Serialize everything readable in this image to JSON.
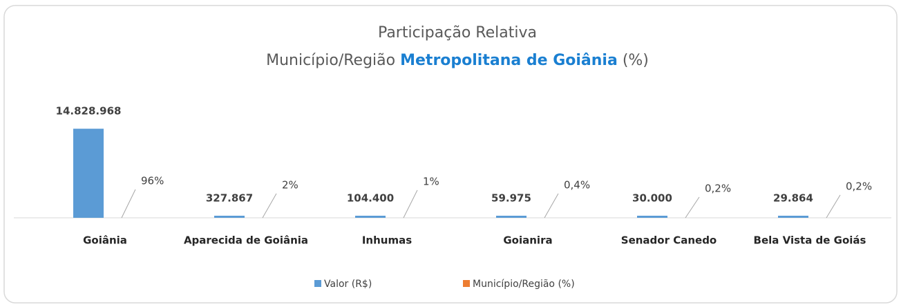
{
  "chart_data": {
    "type": "bar",
    "title": "Participação Relativa",
    "subtitle_parts": [
      "Município/Região",
      "Metropolitana de Goiânia",
      "(%)"
    ],
    "categories": [
      "Goiânia",
      "Aparecida de Goiânia",
      "Inhumas",
      "Goianira",
      "Senador Canedo",
      "Bela Vista de Goiás"
    ],
    "series": [
      {
        "name": "Valor (R$)",
        "color": "#5b9bd5",
        "values": [
          14828968,
          327867,
          104400,
          59975,
          30000,
          29864
        ],
        "value_labels": [
          "14.828.968",
          "327.867",
          "104.400",
          "59.975",
          "30.000",
          "29.864"
        ]
      },
      {
        "name": "Município/Região (%)",
        "color": "#ed7d31",
        "values": [
          96,
          2,
          1,
          0.4,
          0.2,
          0.2
        ],
        "value_labels": [
          "96%",
          "2%",
          "1%",
          "0,4%",
          "0,2%",
          "0,2%"
        ]
      }
    ],
    "ylim": [
      0,
      16000000
    ]
  }
}
